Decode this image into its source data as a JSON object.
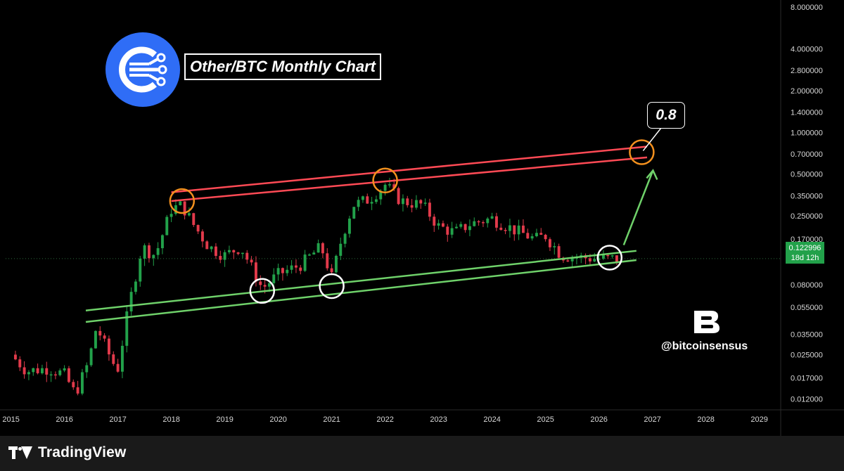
{
  "title": "Other/BTC Monthly Chart",
  "target_label": "0.8",
  "handle": "@bitcoinsensus",
  "footer_brand": "TradingView",
  "price_badge": {
    "value": "0.122996",
    "countdown": "18d 12h"
  },
  "colors": {
    "up": "#22a14a",
    "down": "#e23a4b",
    "channel_upper": "#ff4a55",
    "channel_lower": "#6fd16a",
    "marker_orange": "#f3901e",
    "marker_white": "#ffffff",
    "logo_blue": "#2f6df6",
    "arrow": "#6fd16a"
  },
  "chart_data": {
    "type": "candlestick",
    "scale": "log",
    "x_axis": {
      "ticks": [
        "2015",
        "2016",
        "2017",
        "2018",
        "2019",
        "2020",
        "2021",
        "2022",
        "2023",
        "2024",
        "2025",
        "2026",
        "2027",
        "2028",
        "2029"
      ],
      "range": [
        2014.9,
        2029.4
      ]
    },
    "y_axis": {
      "ticks": [
        "0.012000",
        "0.017000",
        "0.025000",
        "0.035000",
        "0.055000",
        "0.080000",
        "0.170000",
        "0.250000",
        "0.350000",
        "0.500000",
        "0.700000",
        "1.000000",
        "1.400000",
        "2.000000",
        "2.800000",
        "4.000000",
        "8.000000"
      ],
      "range": [
        0.01,
        9
      ]
    },
    "current_price": 0.122996,
    "channel": {
      "upper": [
        [
          2018.0,
          0.37,
          2026.9,
          0.79
        ],
        [
          2018.0,
          0.32,
          2026.9,
          0.66
        ]
      ],
      "lower": [
        [
          2016.4,
          0.052,
          2026.7,
          0.14
        ],
        [
          2016.4,
          0.043,
          2026.7,
          0.12
        ]
      ]
    },
    "markers": [
      {
        "kind": "peak",
        "x": 2018.2,
        "y": 0.32
      },
      {
        "kind": "peak",
        "x": 2022.0,
        "y": 0.45
      },
      {
        "kind": "target",
        "x": 2026.8,
        "y": 0.72
      },
      {
        "kind": "bottom",
        "x": 2019.7,
        "y": 0.072
      },
      {
        "kind": "bottom",
        "x": 2021.0,
        "y": 0.078
      },
      {
        "kind": "bottom",
        "x": 2026.2,
        "y": 0.125
      }
    ],
    "keypoints": [
      [
        2015.0,
        0.025
      ],
      [
        2015.3,
        0.019
      ],
      [
        2015.7,
        0.02
      ],
      [
        2016.0,
        0.018
      ],
      [
        2016.2,
        0.013
      ],
      [
        2016.45,
        0.022
      ],
      [
        2016.6,
        0.04
      ],
      [
        2016.9,
        0.022
      ],
      [
        2017.0,
        0.02
      ],
      [
        2017.2,
        0.055
      ],
      [
        2017.45,
        0.15
      ],
      [
        2017.7,
        0.13
      ],
      [
        2018.0,
        0.28
      ],
      [
        2018.2,
        0.3
      ],
      [
        2018.4,
        0.22
      ],
      [
        2018.7,
        0.15
      ],
      [
        2019.0,
        0.13
      ],
      [
        2019.3,
        0.15
      ],
      [
        2019.7,
        0.075
      ],
      [
        2020.0,
        0.095
      ],
      [
        2020.4,
        0.11
      ],
      [
        2020.8,
        0.15
      ],
      [
        2021.0,
        0.09
      ],
      [
        2021.2,
        0.18
      ],
      [
        2021.4,
        0.3
      ],
      [
        2021.7,
        0.33
      ],
      [
        2022.0,
        0.42
      ],
      [
        2022.3,
        0.32
      ],
      [
        2022.7,
        0.3
      ],
      [
        2023.0,
        0.21
      ],
      [
        2023.3,
        0.19
      ],
      [
        2023.6,
        0.22
      ],
      [
        2024.0,
        0.24
      ],
      [
        2024.4,
        0.2
      ],
      [
        2024.8,
        0.17
      ],
      [
        2025.0,
        0.18
      ],
      [
        2025.3,
        0.13
      ],
      [
        2025.7,
        0.125
      ],
      [
        2026.0,
        0.123
      ],
      [
        2026.3,
        0.123
      ]
    ]
  }
}
